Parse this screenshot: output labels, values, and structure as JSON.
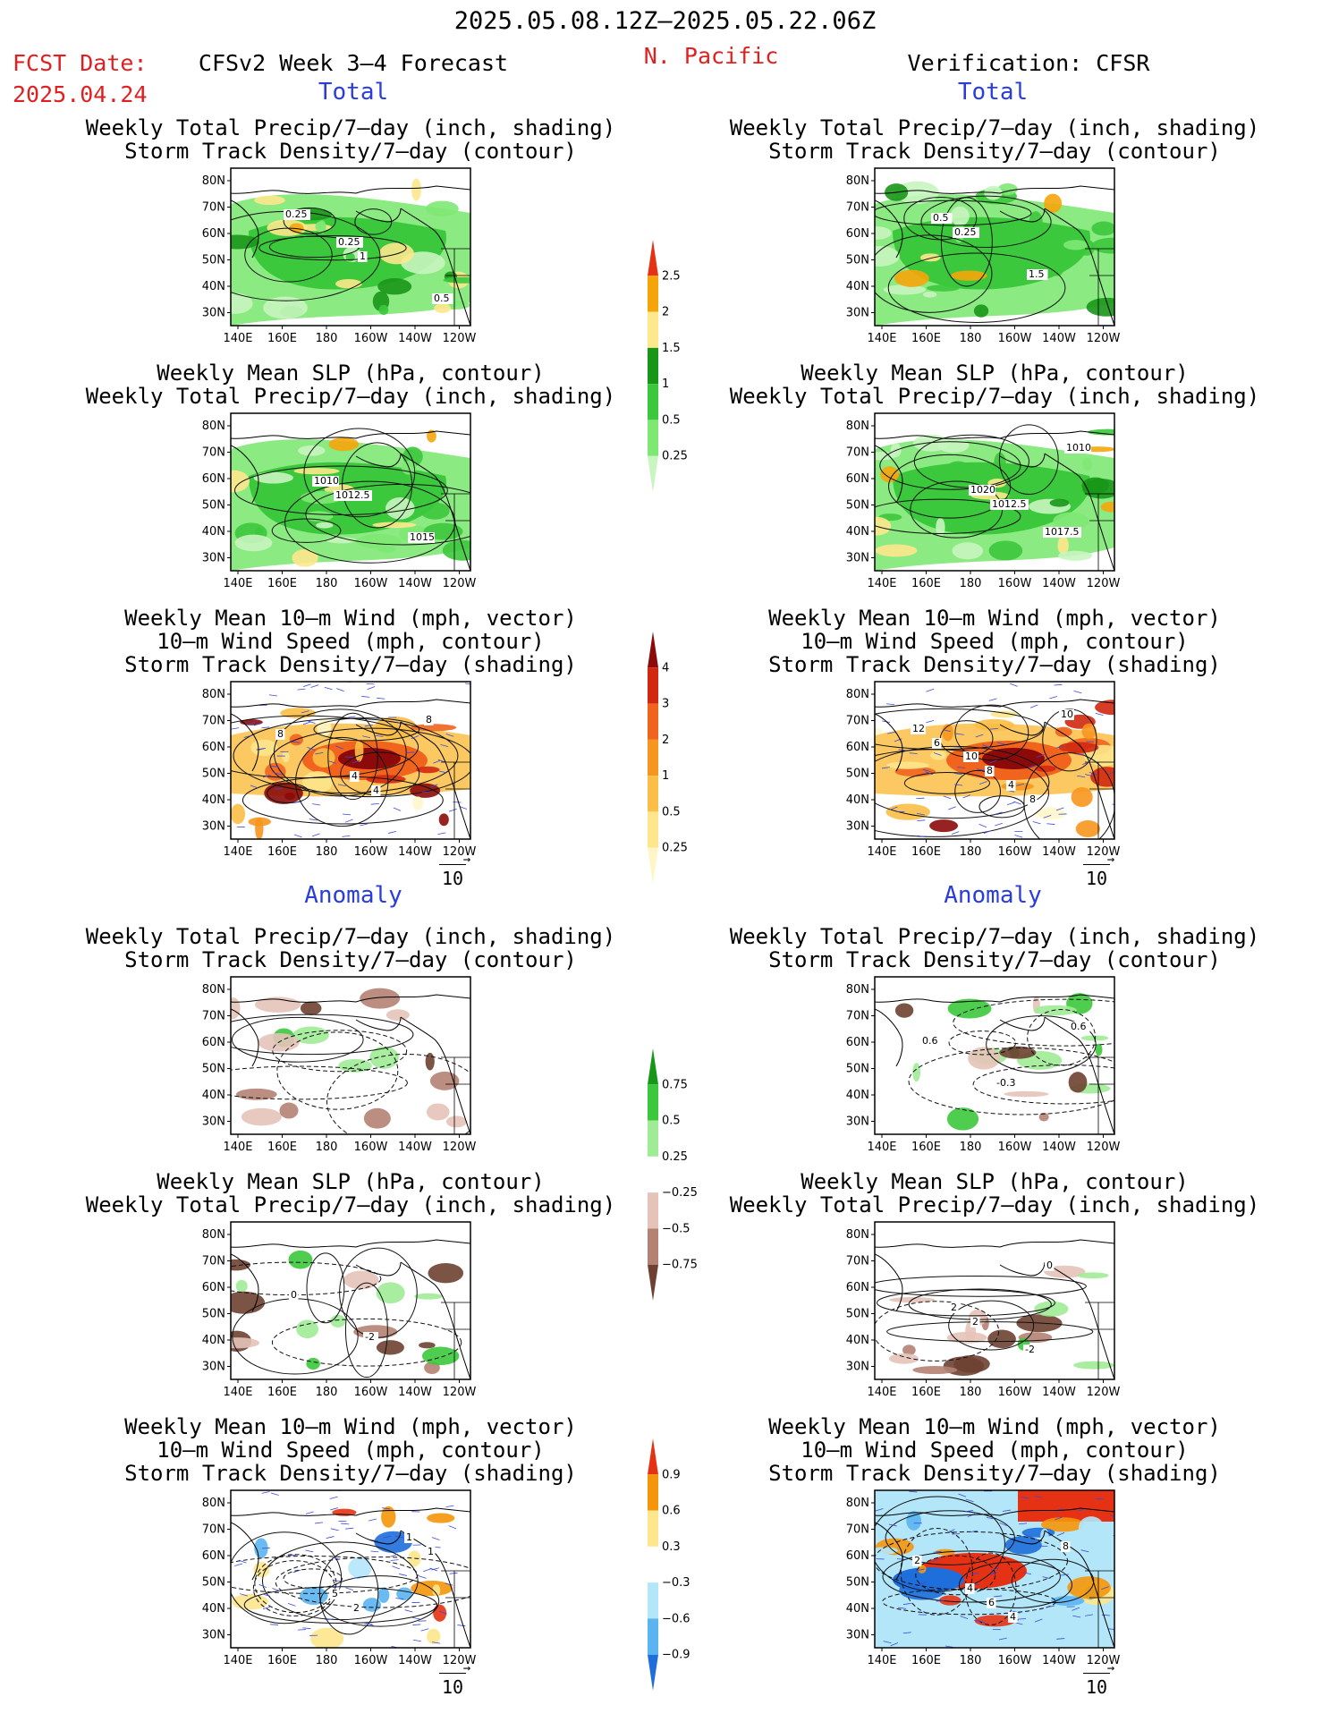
{
  "header": {
    "date_range": "2025.05.08.12Z–2025.05.22.06Z",
    "fcst_label": "FCST Date:",
    "fcst_date": "2025.04.24",
    "model": "CFSv2 Week 3–4 Forecast",
    "region": "N. Pacific",
    "verification": "Verification: CFSR"
  },
  "sections": {
    "total": "Total",
    "anomaly": "Anomaly"
  },
  "panel_titles": {
    "precip_storm": [
      "Weekly Total Precip/7–day (inch, shading)",
      "Storm Track Density/7–day (contour)"
    ],
    "slp_precip": [
      "Weekly Mean SLP (hPa, contour)",
      "Weekly Total Precip/7–day (inch, shading)"
    ],
    "wind_storm": [
      "Weekly Mean 10–m Wind (mph, vector)",
      "10–m Wind Speed (mph, contour)",
      "Storm Track Density/7–day (shading)"
    ]
  },
  "axes": {
    "lat_ticks": [
      "80N",
      "70N",
      "60N",
      "50N",
      "40N",
      "30N"
    ],
    "lon_ticks": [
      "140E",
      "160E",
      "180",
      "160W",
      "140W",
      "120W"
    ]
  },
  "vector_ref": "10",
  "colorbars": {
    "precip_total": {
      "levels": [
        "0.25",
        "0.5",
        "1",
        "1.5",
        "2",
        "2.5"
      ],
      "colors": [
        "#c8f5c0",
        "#7ee873",
        "#3cc83c",
        "#189618",
        "#fde88c",
        "#f5a50a",
        "#e63214"
      ]
    },
    "storm_total": {
      "levels": [
        "0.25",
        "0.5",
        "1",
        "2",
        "3",
        "4"
      ],
      "colors": [
        "#fff6c8",
        "#fde68c",
        "#fbbe46",
        "#f7961e",
        "#f0641e",
        "#d2280f",
        "#8c0a0a"
      ]
    },
    "precip_anom": {
      "levels": [
        "0.75",
        "0.5",
        "0.25",
        "−0.25",
        "−0.5",
        "−0.75"
      ],
      "colors": [
        "#189618",
        "#3cc83c",
        "#a0eb96",
        "#ffffff",
        "#e6c3b9",
        "#b48273",
        "#6e4132"
      ]
    },
    "storm_anom": {
      "levels": [
        "0.9",
        "0.6",
        "0.3",
        "−0.3",
        "−0.6",
        "−0.9"
      ],
      "colors": [
        "#e63214",
        "#f5960a",
        "#fde68c",
        "#ffffff",
        "#b4e6fa",
        "#5ab4f0",
        "#1e6edc"
      ]
    }
  },
  "contour_labels": {
    "f_total_precip": [
      "0.25",
      "1",
      "0.5",
      "0.25"
    ],
    "v_total_precip": [
      "0.25",
      "1.5",
      "0.5"
    ],
    "f_total_slp": [
      "1012.5",
      "1015",
      "1010"
    ],
    "v_total_slp": [
      "1012.5",
      "1010",
      "1020",
      "1017.5"
    ],
    "f_total_wind": [
      "4",
      "8",
      "4",
      "8"
    ],
    "v_total_wind": [
      "8",
      "6",
      "4",
      "12",
      "8",
      "10",
      "10"
    ],
    "f_anom_precip": [],
    "v_anom_precip": [
      "0.6",
      "-0.3",
      "0.6"
    ],
    "f_anom_slp": [
      "0",
      "-2"
    ],
    "v_anom_slp": [
      "2",
      "0",
      "2",
      "-2"
    ],
    "f_anom_wind": [
      "2",
      "1",
      "5",
      "1"
    ],
    "v_anom_wind": [
      "4",
      "2",
      "6",
      "8",
      "4"
    ]
  }
}
